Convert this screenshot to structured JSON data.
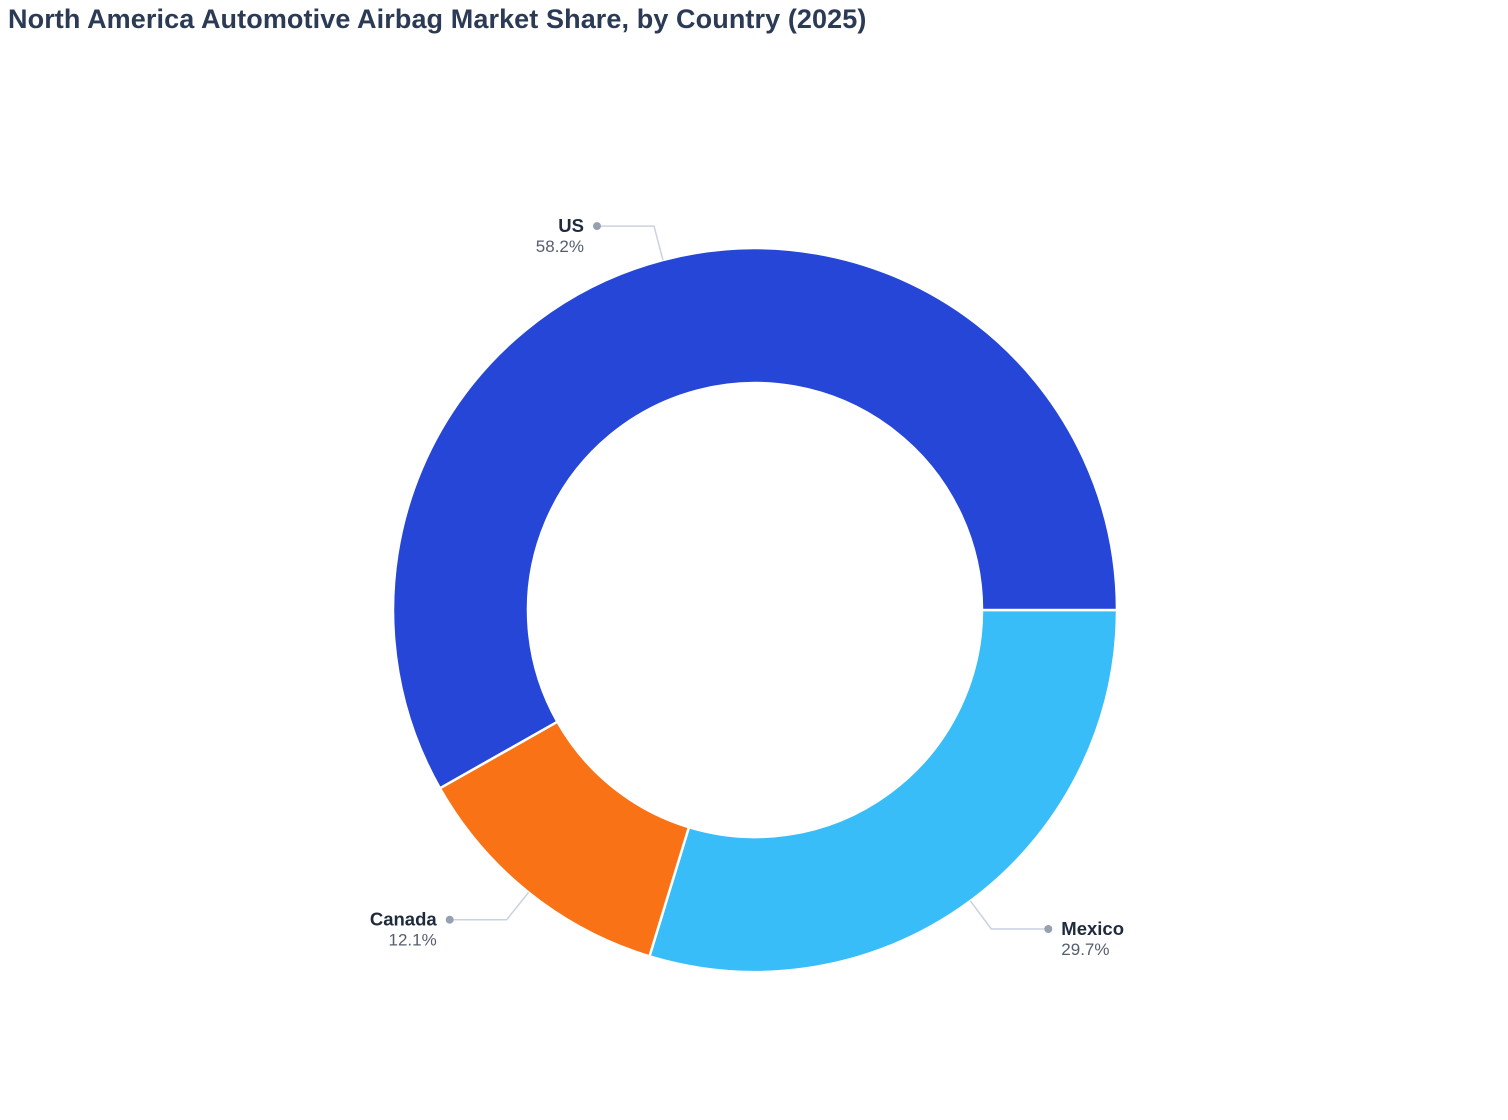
{
  "title": "North America Automotive Airbag Market Share, by Country (2025)",
  "chart_data": {
    "type": "pie",
    "subtype": "donut",
    "title": "North America Automotive Airbag Market Share, by Country (2025)",
    "labels": [
      "US",
      "Mexico",
      "Canada"
    ],
    "values": [
      58.2,
      29.7,
      12.1
    ],
    "value_labels": [
      "58.2%",
      "29.7%",
      "12.1%"
    ],
    "colors": [
      "#2646D8",
      "#38BDF8",
      "#F97316"
    ],
    "hole_ratio": 0.627,
    "rotation_cw_from_top_deg": 240.5,
    "slice_border_color": "#ffffff",
    "label_style": "outside-with-leader-lines",
    "leader_line_color": "#C9D2E2",
    "leader_dot_color": "#97A0B1",
    "name_label_color": "#1F2A3C",
    "percent_label_color": "#555E6E",
    "title_color": "#2B3A55",
    "legend_position": "none",
    "background": "#ffffff"
  }
}
